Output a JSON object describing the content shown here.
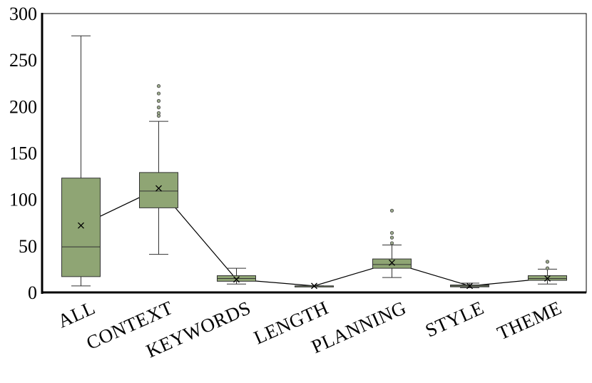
{
  "chart_data": {
    "type": "box",
    "title": "",
    "xlabel": "",
    "ylabel": "",
    "ylim": [
      0,
      300
    ],
    "yticks": [
      0,
      50,
      100,
      150,
      200,
      250,
      300
    ],
    "grid": false,
    "legend": "none",
    "categories": [
      "ALL",
      "CONTEXT",
      "KEYWORDS",
      "LENGTH",
      "PLANNING",
      "STYLE",
      "THEME"
    ],
    "boxes": [
      {
        "category": "ALL",
        "min": 7,
        "q1": 17,
        "median": 49,
        "q3": 123,
        "max": 276,
        "mean": 72,
        "outliers": []
      },
      {
        "category": "CONTEXT",
        "min": 41,
        "q1": 91,
        "median": 109,
        "q3": 129,
        "max": 184,
        "mean": 112,
        "outliers": [
          190,
          193,
          199,
          206,
          214,
          222
        ]
      },
      {
        "category": "KEYWORDS",
        "min": 9,
        "q1": 12,
        "median": 15,
        "q3": 18,
        "max": 26,
        "mean": 14,
        "outliers": []
      },
      {
        "category": "LENGTH",
        "min": 7,
        "q1": 7,
        "median": 7,
        "q3": 7,
        "max": 7,
        "mean": 7,
        "outliers": []
      },
      {
        "category": "PLANNING",
        "min": 16,
        "q1": 26,
        "median": 30,
        "q3": 36,
        "max": 51,
        "mean": 32,
        "outliers": [
          53,
          59,
          64,
          88
        ]
      },
      {
        "category": "STYLE",
        "min": 5,
        "q1": 6,
        "median": 7,
        "q3": 8,
        "max": 10,
        "mean": 7,
        "outliers": []
      },
      {
        "category": "THEME",
        "min": 9,
        "q1": 13,
        "median": 15,
        "q3": 18,
        "max": 25,
        "mean": 15,
        "outliers": [
          26,
          33
        ]
      }
    ],
    "colors": {
      "box_fill": "#8fa574",
      "box_stroke": "#333333",
      "mean_line": "#000000",
      "outlier_fill": "#9aa88a"
    }
  }
}
